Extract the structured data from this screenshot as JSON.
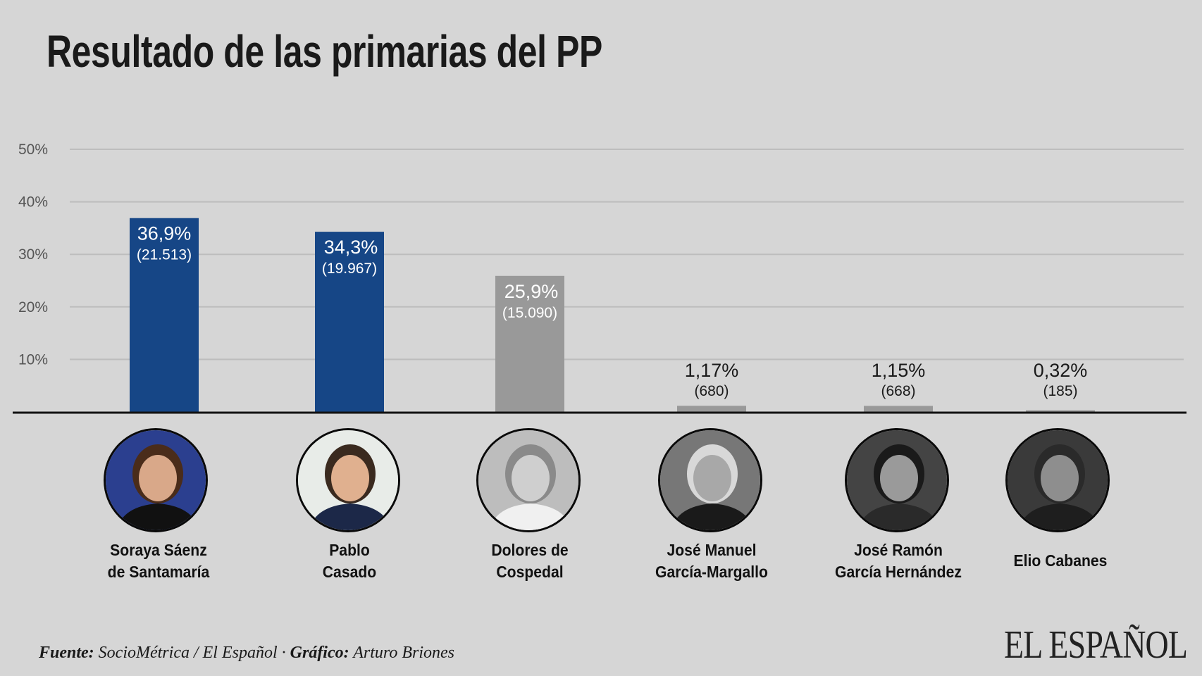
{
  "title": "Resultado de las primarias del PP",
  "colors": {
    "background": "#d6d6d6",
    "bar_highlight": "#164686",
    "bar_other": "#999999",
    "grid": "#bdbdbd",
    "axis": "#111111"
  },
  "chart_data": {
    "type": "bar",
    "title": "Resultado de las primarias del PP",
    "xlabel": "",
    "ylabel": "",
    "ylim": [
      0,
      50
    ],
    "yticks": [
      10,
      20,
      30,
      40,
      50
    ],
    "ytick_labels": [
      "10%",
      "20%",
      "30%",
      "40%",
      "50%"
    ],
    "grid": true,
    "categories": [
      "Soraya Sáenz de Santamaría",
      "Pablo Casado",
      "Dolores de Cospedal",
      "José Manuel García-Margallo",
      "José Ramón García Hernández",
      "Elio Cabanes"
    ],
    "values": [
      36.9,
      34.3,
      25.9,
      1.17,
      1.15,
      0.32
    ],
    "value_labels": [
      "36,9%",
      "34,3%",
      "25,9%",
      "1,17%",
      "1,15%",
      "0,32%"
    ],
    "votes": [
      21513,
      19967,
      15090,
      680,
      668,
      185
    ],
    "vote_labels": [
      "(21.513)",
      "(19.967)",
      "(15.090)",
      "(680)",
      "(668)",
      "(185)"
    ],
    "highlight": [
      true,
      true,
      false,
      false,
      false,
      false
    ]
  },
  "candidates": [
    {
      "line1": "Soraya Sáenz",
      "line2": "de Santamaría",
      "photo": "photo-soraya-saenz-de-santamaria"
    },
    {
      "line1": "Pablo",
      "line2": "Casado",
      "photo": "photo-pablo-casado"
    },
    {
      "line1": "Dolores de",
      "line2": "Cospedal",
      "photo": "photo-dolores-de-cospedal"
    },
    {
      "line1": "José Manuel",
      "line2": "García-Margallo",
      "photo": "photo-jose-manuel-garcia-margallo"
    },
    {
      "line1": "José Ramón",
      "line2": "García Hernández",
      "photo": "photo-jose-ramon-garcia-hernandez"
    },
    {
      "line1": "Elio Cabanes",
      "line2": "",
      "photo": "photo-elio-cabanes"
    }
  ],
  "footer": {
    "source_label": "Fuente:",
    "source_value": "SocioMétrica / El Español",
    "separator": "·",
    "graphic_label": "Gráfico:",
    "graphic_value": "Arturo Briones"
  },
  "logo": "EL ESPAÑOL"
}
